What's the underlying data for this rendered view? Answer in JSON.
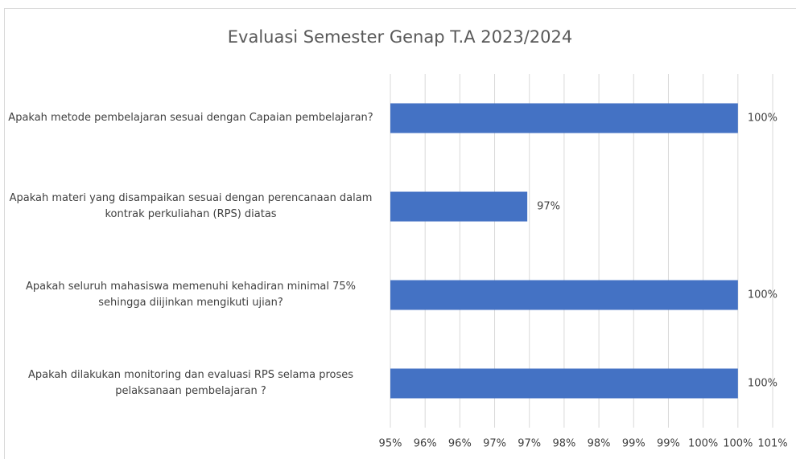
{
  "chart_data": {
    "type": "hbar",
    "title": "Evaluasi Semester Genap T.A 2023/2024",
    "categories": [
      "Apakah metode pembelajaran sesuai dengan Capaian pembelajaran?",
      "Apakah materi yang disampaikan sesuai dengan perencanaan dalam kontrak perkuliahan (RPS) diatas",
      "Apakah seluruh mahasiswa memenuhi kehadiran minimal 75% sehingga diijinkan mengikuti ujian?",
      "Apakah dilakukan monitoring dan evaluasi RPS selama proses pelaksanaan pembelajaran ?"
    ],
    "values": [
      100,
      96.97,
      100,
      100
    ],
    "value_labels": [
      "100%",
      "97%",
      "100%",
      "100%"
    ],
    "color": "#4472c4",
    "xlim": [
      95,
      100.5
    ],
    "xticks": [
      {
        "value": 95,
        "label": "95%"
      },
      {
        "value": 95.5,
        "label": "96%"
      },
      {
        "value": 96,
        "label": "96%"
      },
      {
        "value": 96.5,
        "label": "97%"
      },
      {
        "value": 97,
        "label": "97%"
      },
      {
        "value": 97.5,
        "label": "98%"
      },
      {
        "value": 98,
        "label": "98%"
      },
      {
        "value": 98.5,
        "label": "99%"
      },
      {
        "value": 99,
        "label": "99%"
      },
      {
        "value": 99.5,
        "label": "100%"
      },
      {
        "value": 100,
        "label": "100%"
      },
      {
        "value": 100.5,
        "label": "101%"
      }
    ],
    "grid": true
  }
}
